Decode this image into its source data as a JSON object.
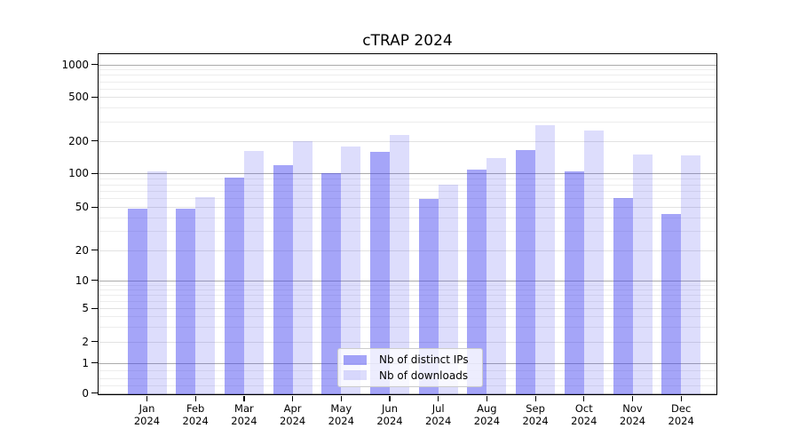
{
  "chart_data": {
    "type": "bar",
    "title": "cTRAP 2024",
    "categories": [
      "Jan 2024",
      "Feb 2024",
      "Mar 2024",
      "Apr 2024",
      "May 2024",
      "Jun 2024",
      "Jul 2024",
      "Aug 2024",
      "Sep 2024",
      "Oct 2024",
      "Nov 2024",
      "Dec 2024"
    ],
    "series": [
      {
        "name": "Nb of distinct IPs",
        "color": "#4040f0",
        "alpha": 0.47,
        "values": [
          48,
          48,
          92,
          120,
          100,
          158,
          59,
          108,
          165,
          105,
          60,
          43
        ]
      },
      {
        "name": "Nb of downloads",
        "color": "#4040f0",
        "alpha": 0.18,
        "values": [
          105,
          62,
          162,
          200,
          178,
          228,
          80,
          140,
          280,
          250,
          150,
          148
        ]
      }
    ],
    "xlabel": "",
    "ylabel": "",
    "yscale": "symlog",
    "yticks": [
      0,
      1,
      2,
      5,
      10,
      20,
      50,
      100,
      200,
      500,
      1000
    ],
    "ylim": [
      0,
      1400
    ],
    "grid": true,
    "legend_position": "lower center",
    "colors": {
      "bar_dark_rendered": "#a8a8f6",
      "bar_light_rendered": "#dbdbfa",
      "grid_major_decade": "#ababab",
      "grid_major_other": "#e2e2e2",
      "grid_minor": "#ededed"
    }
  }
}
